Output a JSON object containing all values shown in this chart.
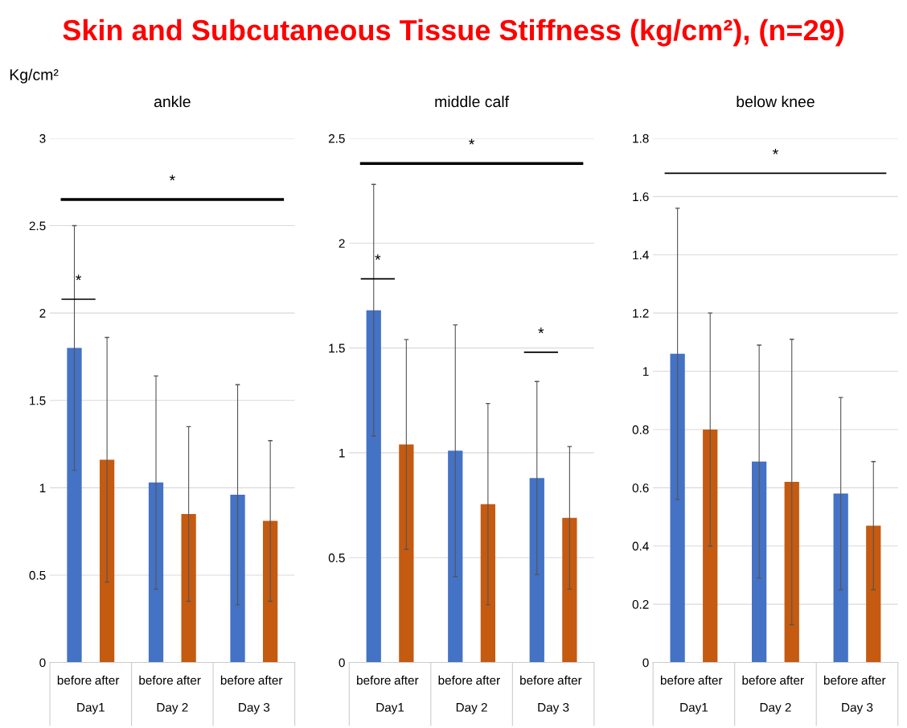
{
  "chart_data": [
    {
      "type": "bar",
      "title": "ankle",
      "ylabel": "Kg/cm²",
      "categories": [
        "Day1",
        "Day 2",
        "Day 3"
      ],
      "series": [
        {
          "name": "before",
          "color": "#4472c4",
          "values": [
            1.8,
            1.03,
            0.96
          ],
          "errors": [
            0.7,
            0.61,
            0.63
          ]
        },
        {
          "name": "after",
          "color": "#c55a11",
          "values": [
            1.16,
            0.85,
            0.81
          ],
          "errors": [
            0.7,
            0.5,
            0.46
          ]
        }
      ],
      "ylim": [
        0,
        3
      ],
      "yticks": [
        0,
        0.5,
        1,
        1.5,
        2,
        2.5,
        3
      ],
      "grid": "y",
      "legend": false,
      "ref_lines": [
        {
          "axis": "y",
          "value": 2.65,
          "label": "*",
          "color": "#000000"
        }
      ],
      "annotations": [
        "Skin and Subcutaneous Tissue Stiffness (kg/cm²), (n=29)",
        "*"
      ]
    },
    {
      "type": "bar",
      "title": "middle calf",
      "categories": [
        "Day1",
        "Day 2",
        "Day 3"
      ],
      "series": [
        {
          "name": "before",
          "color": "#4472c4",
          "values": [
            1.68,
            1.01,
            0.88
          ],
          "errors": [
            0.6,
            0.6,
            0.46
          ]
        },
        {
          "name": "after",
          "color": "#c55a11",
          "values": [
            1.04,
            0.755,
            0.69
          ],
          "errors": [
            0.5,
            0.48,
            0.34
          ]
        }
      ],
      "ylim": [
        0,
        2.5
      ],
      "yticks": [
        0,
        0.5,
        1,
        1.5,
        2,
        2.5
      ],
      "grid": "y",
      "legend": false,
      "ref_lines": [
        {
          "axis": "y",
          "value": 2.38,
          "label": "*",
          "color": "#000000"
        }
      ],
      "annotations": [
        "*",
        "*"
      ]
    },
    {
      "type": "bar",
      "title": "below knee",
      "categories": [
        "Day1",
        "Day 2",
        "Day 3"
      ],
      "series": [
        {
          "name": "before",
          "color": "#4472c4",
          "values": [
            1.06,
            0.69,
            0.58
          ],
          "errors": [
            0.5,
            0.4,
            0.33
          ]
        },
        {
          "name": "after",
          "color": "#c55a11",
          "values": [
            0.8,
            0.62,
            0.47
          ],
          "errors": [
            0.4,
            0.49,
            0.22
          ]
        }
      ],
      "ylim": [
        0,
        1.8
      ],
      "yticks": [
        0,
        0.2,
        0.4,
        0.6,
        0.8,
        1,
        1.2,
        1.4,
        1.6,
        1.8
      ],
      "grid": "y",
      "legend": false,
      "ref_lines": [
        {
          "axis": "y",
          "value": 1.68,
          "label": "*",
          "color": "#000000"
        }
      ]
    }
  ]
}
